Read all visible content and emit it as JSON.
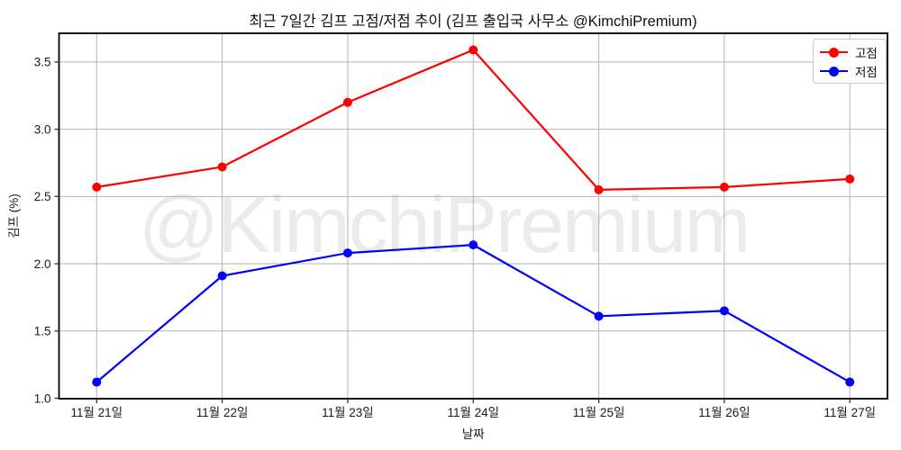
{
  "figure": {
    "background": "#ffffff"
  },
  "chart_data": {
    "type": "line",
    "title": "최근 7일간 김프 고점/저점 추이 (김프 출입국 사무소 @KimchiPremium)",
    "xlabel": "날짜",
    "ylabel": "김프 (%)",
    "categories": [
      "11월 21일",
      "11월 22일",
      "11월 23일",
      "11월 24일",
      "11월 25일",
      "11월 26일",
      "11월 27일"
    ],
    "series": [
      {
        "name": "고점",
        "color": "#ff0000",
        "marker": "circle",
        "values": [
          2.57,
          2.72,
          3.2,
          3.59,
          2.55,
          2.57,
          2.63
        ]
      },
      {
        "name": "저점",
        "color": "#0000ff",
        "marker": "circle",
        "values": [
          1.12,
          1.91,
          2.08,
          2.14,
          1.61,
          1.65,
          1.12
        ]
      }
    ],
    "yticks": [
      1.0,
      1.5,
      2.0,
      2.5,
      3.0,
      3.5
    ],
    "ylim": [
      0.9965,
      3.7135
    ],
    "xlim": [
      -0.3,
      6.3
    ],
    "grid": true,
    "legend_position": "top-right",
    "watermark": "@KimchiPremium"
  },
  "colors": {
    "grid": "#b4b4b4",
    "spine": "#000000",
    "tick": "#333333",
    "tick_label": "#1a1a1a",
    "watermark": "#ebebeb",
    "legend_border": "#cccccc"
  }
}
